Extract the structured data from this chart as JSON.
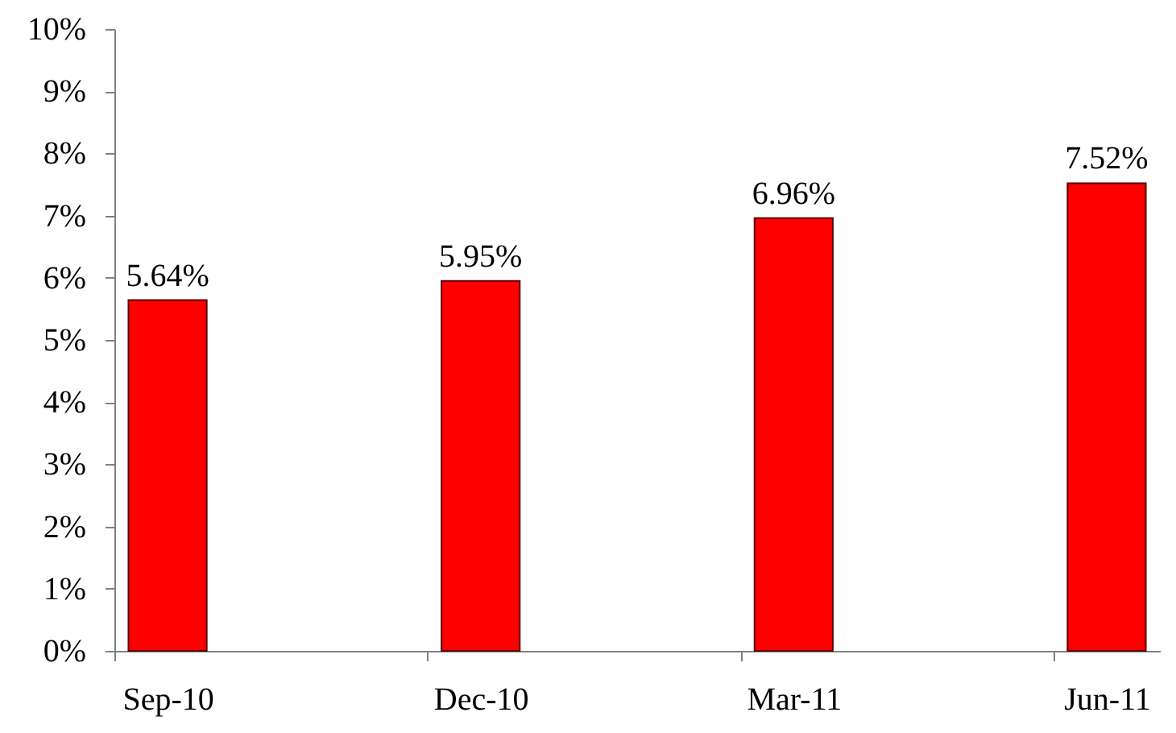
{
  "chart_data": {
    "type": "bar",
    "categories": [
      "Sep-10",
      "Dec-10",
      "Mar-11",
      "Jun-11"
    ],
    "values": [
      5.64,
      5.95,
      6.96,
      7.52
    ],
    "value_labels": [
      "5.64%",
      "5.95%",
      "6.96%",
      "7.52%"
    ],
    "color": "#ff0000",
    "ylim": [
      0,
      10
    ],
    "yticks": [
      {
        "value": 0,
        "label": "0%"
      },
      {
        "value": 1,
        "label": "1%"
      },
      {
        "value": 2,
        "label": "2%"
      },
      {
        "value": 3,
        "label": "3%"
      },
      {
        "value": 4,
        "label": "4%"
      },
      {
        "value": 5,
        "label": "5%"
      },
      {
        "value": 6,
        "label": "6%"
      },
      {
        "value": 7,
        "label": "7%"
      },
      {
        "value": 8,
        "label": "8%"
      },
      {
        "value": 9,
        "label": "9%"
      },
      {
        "value": 10,
        "label": "10%"
      }
    ]
  }
}
